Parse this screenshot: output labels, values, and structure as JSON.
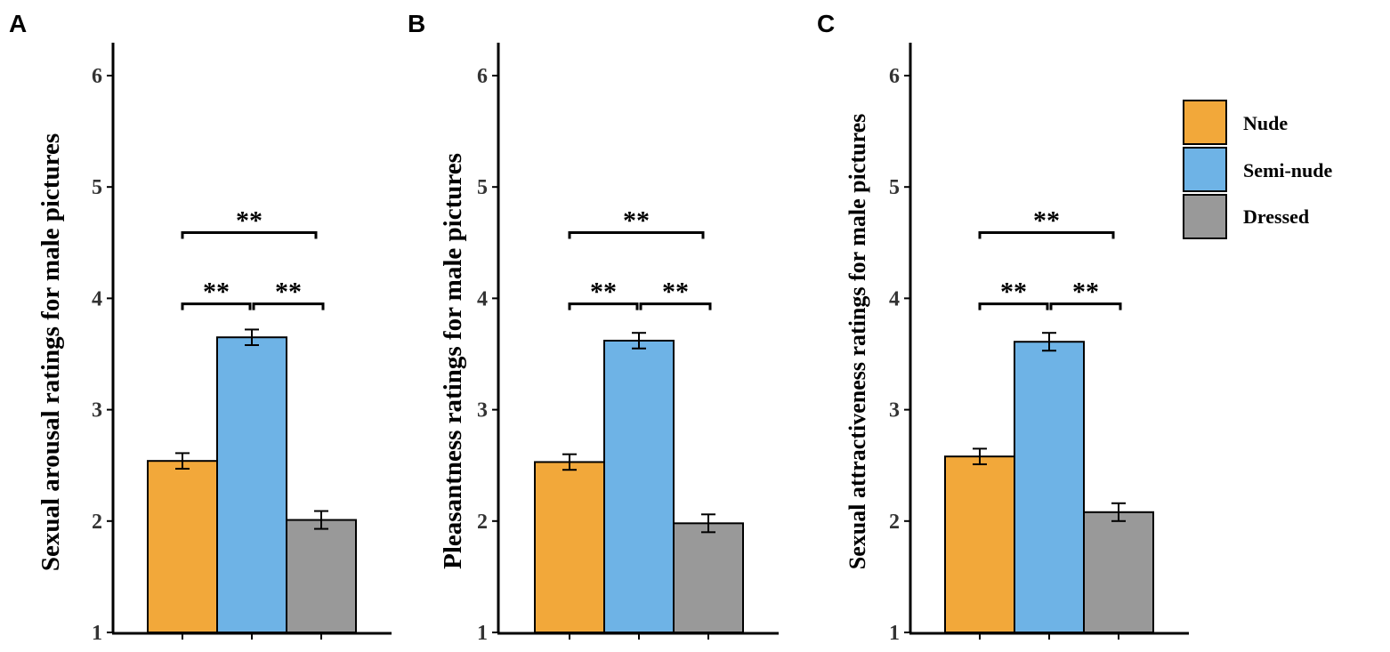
{
  "colors": {
    "Nude": "#F2A83A",
    "Semi-nude": "#6EB3E6",
    "Dressed": "#999999",
    "axis": "#000000"
  },
  "legend": {
    "position": "top-right",
    "items": [
      {
        "label": "Nude",
        "color": "#F2A83A"
      },
      {
        "label": "Semi-nude",
        "color": "#6EB3E6"
      },
      {
        "label": "Dressed",
        "color": "#999999"
      }
    ]
  },
  "chart_data": [
    {
      "type": "bar",
      "panel": "A",
      "ylabel": "Sexual arousal ratings for male pictures",
      "xlabel": "",
      "categories": [
        "Nude",
        "Semi-nude",
        "Dressed"
      ],
      "values": [
        2.54,
        3.65,
        2.01
      ],
      "errors": [
        0.07,
        0.07,
        0.08
      ],
      "ylim": [
        1,
        6.3
      ],
      "yticks": [
        1,
        2,
        3,
        4,
        5,
        6
      ],
      "significance": [
        {
          "from": 0,
          "to": 1,
          "label": "**",
          "level": 3.95
        },
        {
          "from": 1,
          "to": 2,
          "label": "**",
          "level": 3.95
        },
        {
          "from": 0,
          "to": 2,
          "label": "**",
          "level": 4.59
        }
      ]
    },
    {
      "type": "bar",
      "panel": "B",
      "ylabel": "Pleasantness ratings for male pictures",
      "xlabel": "",
      "categories": [
        "Nude",
        "Semi-nude",
        "Dressed"
      ],
      "values": [
        2.53,
        3.62,
        1.98
      ],
      "errors": [
        0.07,
        0.07,
        0.08
      ],
      "ylim": [
        1,
        6.3
      ],
      "yticks": [
        1,
        2,
        3,
        4,
        5,
        6
      ],
      "significance": [
        {
          "from": 0,
          "to": 1,
          "label": "**",
          "level": 3.95
        },
        {
          "from": 1,
          "to": 2,
          "label": "**",
          "level": 3.95
        },
        {
          "from": 0,
          "to": 2,
          "label": "**",
          "level": 4.59
        }
      ]
    },
    {
      "type": "bar",
      "panel": "C",
      "ylabel": "Sexual attractiveness ratings for male pictures",
      "xlabel": "",
      "categories": [
        "Nude",
        "Semi-nude",
        "Dressed"
      ],
      "values": [
        2.58,
        3.61,
        2.08
      ],
      "errors": [
        0.07,
        0.08,
        0.08
      ],
      "ylim": [
        1,
        6.3
      ],
      "yticks": [
        1,
        2,
        3,
        4,
        5,
        6
      ],
      "significance": [
        {
          "from": 0,
          "to": 1,
          "label": "**",
          "level": 3.95
        },
        {
          "from": 1,
          "to": 2,
          "label": "**",
          "level": 3.95
        },
        {
          "from": 0,
          "to": 2,
          "label": "**",
          "level": 4.59
        }
      ]
    }
  ]
}
